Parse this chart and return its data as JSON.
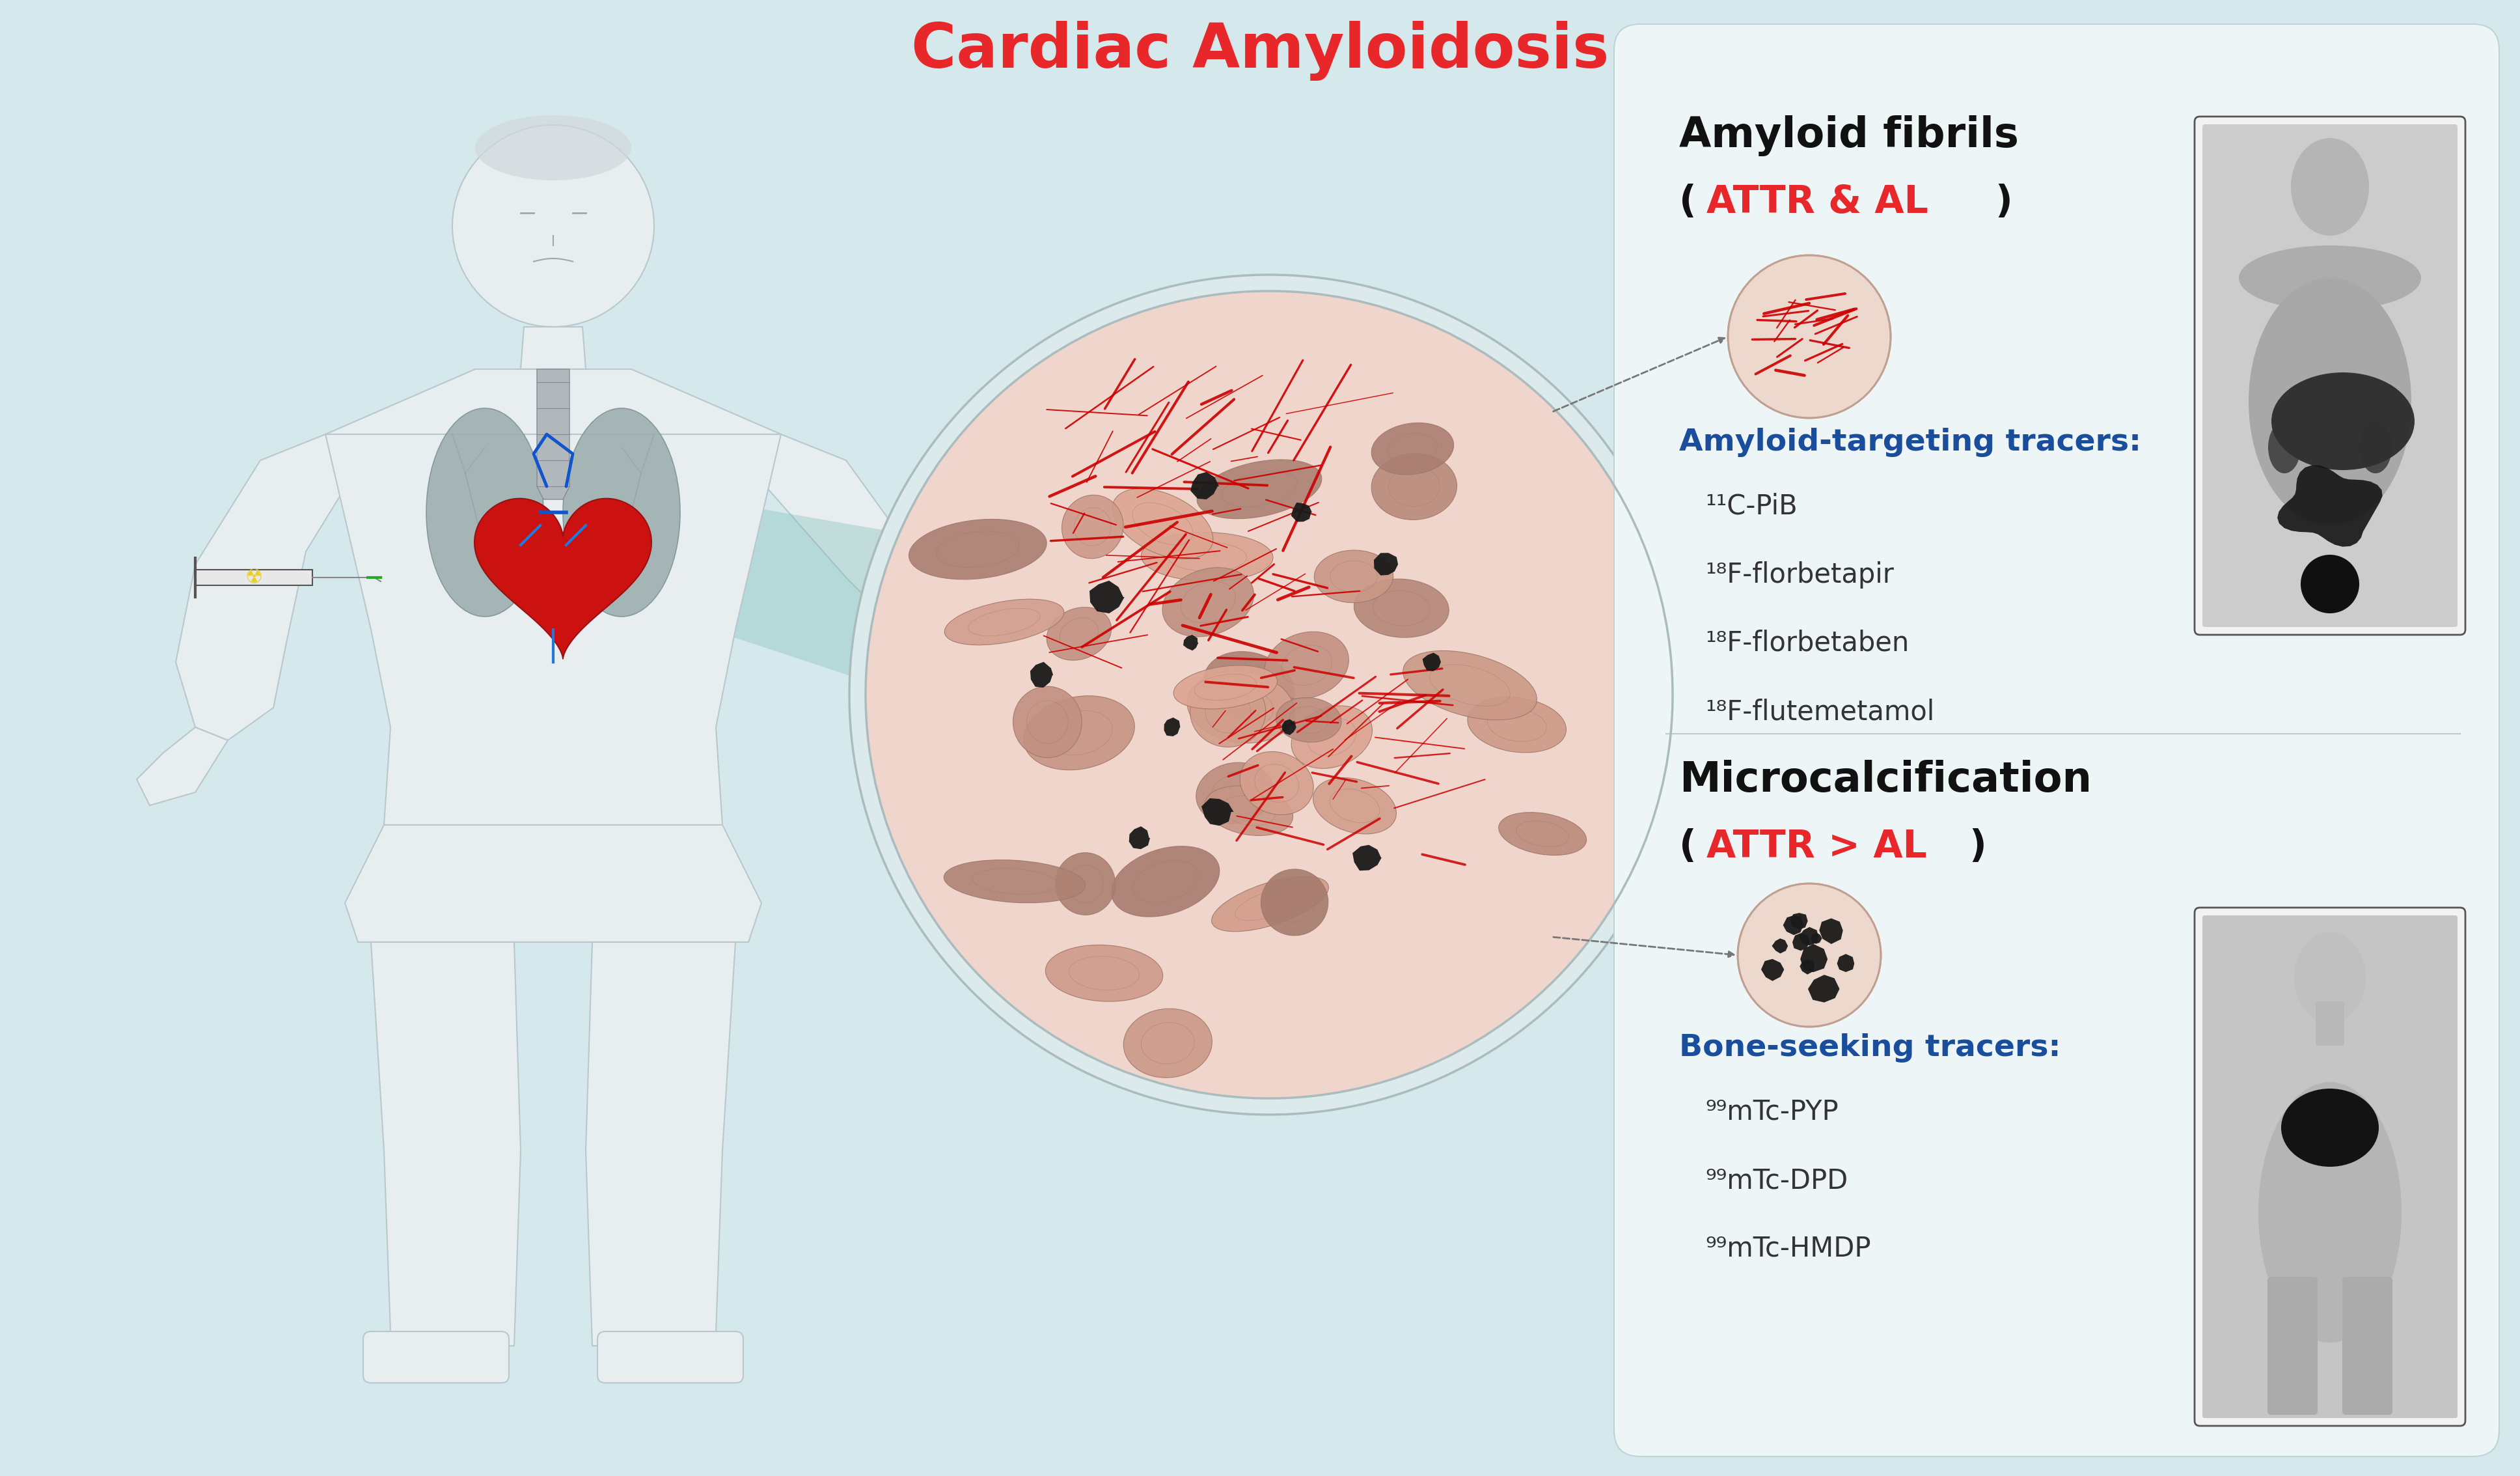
{
  "title": "Cardiac Amyloidosis",
  "title_color": "#E8272A",
  "title_fontsize": 68,
  "bg_color": "#FFFFFF",
  "panel_bg_color": "#D5E9EC",
  "panel_border_color": "#AECDD0",
  "section1_title": "Amyloid fibrils",
  "section1_subtitle_open": "(",
  "section1_subtitle_colored": "ATTR & AL",
  "section1_subtitle_close": ")",
  "section1_tracer_label": "Amyloid-targeting tracers:",
  "section1_tracers": [
    "¹¹C-PiB",
    "¹⁸F-florbetapir",
    "¹⁸F-florbetaben",
    "¹⁸F-flutemetamol"
  ],
  "section2_title": "Microcalcification",
  "section2_subtitle_open": "(",
  "section2_subtitle_colored": "ATTR > AL",
  "section2_subtitle_close": ")",
  "section2_tracer_label": "Bone-seeking tracers:",
  "section2_tracers": [
    "⁹⁹mTc-PYP",
    "⁹⁹mTc-DPD",
    "⁹⁹mTc-HMDP"
  ],
  "attr_al_color": "#E8272A",
  "tracer_label_color": "#1A4E9C",
  "tracer_text_color": "#333333",
  "section_title_color": "#111111",
  "text_fontsize": 30,
  "label_fontsize": 34,
  "section_fontsize": 46,
  "sub_fontsize": 42,
  "body_color": "#E8EDEF",
  "body_edge_color": "#B8C8CC",
  "lung_color": "#9AACAC",
  "tissue_bg": "#F0D5CD",
  "tissue_cell_color": "#C09080",
  "tissue_cell_edge": "#A07868",
  "plate_color": "#C8D0D0",
  "fibril_red": "#CC0000",
  "deposit_black": "#1A1A1A",
  "teal_beam": "#7BBCB8",
  "scan1_bg": "#D0D0D0",
  "scan2_bg": "#C8C8C8",
  "dashed_color": "#777777",
  "white_panel_bg": "#EDF5F6",
  "white_panel_edge": "#C0D4D8"
}
